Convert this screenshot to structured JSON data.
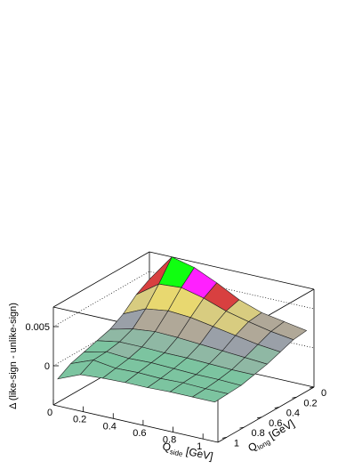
{
  "chart_data": {
    "type": "surface",
    "x_label": {
      "main": "Q",
      "sub": "side",
      "unit": "[GeV]"
    },
    "y_label": {
      "main": "Q",
      "sub": "long",
      "unit": "[GeV]"
    },
    "z_label": "Δ (like-sign - unlike-sign)",
    "x": [
      0,
      0.15,
      0.3,
      0.45,
      0.6,
      0.75,
      0.9,
      1.05
    ],
    "y": [
      0,
      0.15,
      0.3,
      0.45,
      0.6,
      0.75,
      0.9,
      1.05
    ],
    "z": [
      [
        0.004,
        0.0075,
        0.0068,
        0.0055,
        0.004,
        0.003,
        0.0025,
        0.002
      ],
      [
        0.003,
        0.005,
        0.0052,
        0.0045,
        0.0035,
        0.0028,
        0.0022,
        0.0018
      ],
      [
        0.0015,
        0.0028,
        0.0032,
        0.003,
        0.0025,
        0.002,
        0.0015,
        0.0012
      ],
      [
        0.0005,
        0.0012,
        0.0015,
        0.0014,
        0.0012,
        0.001,
        0.0008,
        0.0006
      ],
      [
        0,
        0.0005,
        0.0005,
        0.0004,
        0.0004,
        0.0003,
        0.0002,
        0.0002
      ],
      [
        -0.0005,
        0.0002,
        0,
        0.0001,
        0,
        -0.0001,
        -0.0001,
        -0.0002
      ],
      [
        -0.001,
        0.0001,
        -0.0003,
        -0.0002,
        -0.0003,
        -0.0002,
        -0.0003,
        -0.0003
      ],
      [
        -0.002,
        -0.0008,
        -0.0006,
        -0.0005,
        -0.0005,
        -0.0004,
        -0.0004,
        -0.0004
      ]
    ],
    "xlim": [
      0,
      1.1
    ],
    "ylim": [
      0,
      1.1
    ],
    "zlim": [
      -0.005,
      0.0075
    ],
    "xticks": [
      0,
      0.2,
      0.4,
      0.6,
      0.8,
      1
    ],
    "yticks": [
      0,
      0.2,
      0.4,
      0.6,
      0.8,
      1
    ],
    "zticks": [
      0,
      0.005
    ],
    "colors": [
      "#7cc4a0",
      "#8fb8a4",
      "#9aa0a8",
      "#b0a898",
      "#d8cc80",
      "#e8d870",
      "#d84040",
      "#ff20ff",
      "#10ff10",
      "#000000"
    ],
    "grid": true
  }
}
